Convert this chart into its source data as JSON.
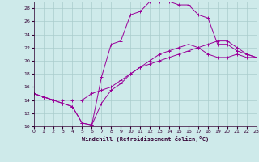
{
  "xlabel": "Windchill (Refroidissement éolien,°C)",
  "xlim": [
    0,
    23
  ],
  "ylim": [
    10,
    29
  ],
  "xticks": [
    0,
    1,
    2,
    3,
    4,
    5,
    6,
    7,
    8,
    9,
    10,
    11,
    12,
    13,
    14,
    15,
    16,
    17,
    18,
    19,
    20,
    21,
    22,
    23
  ],
  "yticks": [
    10,
    12,
    14,
    16,
    18,
    20,
    22,
    24,
    26,
    28
  ],
  "background_color": "#ceeaea",
  "grid_color": "#aacccc",
  "line_color": "#990099",
  "line1_x": [
    0,
    1,
    2,
    3,
    4,
    5,
    6,
    7,
    8,
    9,
    10,
    11,
    12,
    13,
    14,
    15,
    16,
    17,
    18,
    19,
    20,
    21,
    22,
    23
  ],
  "line1_y": [
    15.0,
    14.5,
    14.0,
    13.5,
    13.0,
    10.5,
    10.2,
    13.5,
    15.5,
    16.5,
    18.0,
    19.0,
    20.0,
    21.0,
    21.5,
    22.0,
    22.5,
    22.0,
    21.0,
    20.5,
    20.5,
    21.0,
    20.5,
    20.5
  ],
  "line2_x": [
    0,
    1,
    2,
    3,
    4,
    5,
    6,
    7,
    8,
    9,
    10,
    11,
    12,
    13,
    14,
    15,
    16,
    17,
    18,
    19,
    20,
    21,
    22,
    23
  ],
  "line2_y": [
    15.0,
    14.5,
    14.0,
    14.0,
    14.0,
    14.0,
    15.0,
    15.5,
    16.0,
    17.0,
    18.0,
    19.0,
    19.5,
    20.0,
    20.5,
    21.0,
    21.5,
    22.0,
    22.5,
    23.0,
    23.0,
    22.0,
    21.0,
    20.5
  ],
  "line3_x": [
    0,
    1,
    2,
    3,
    4,
    5,
    6,
    7,
    8,
    9,
    10,
    11,
    12,
    13,
    14,
    15,
    16,
    17,
    18,
    19,
    20,
    21,
    22,
    23
  ],
  "line3_y": [
    15.0,
    14.5,
    14.0,
    13.5,
    13.0,
    10.5,
    10.2,
    17.5,
    22.5,
    23.0,
    27.0,
    27.5,
    29.0,
    29.0,
    29.0,
    28.5,
    28.5,
    27.0,
    26.5,
    22.5,
    22.5,
    21.5,
    21.0,
    20.5
  ]
}
